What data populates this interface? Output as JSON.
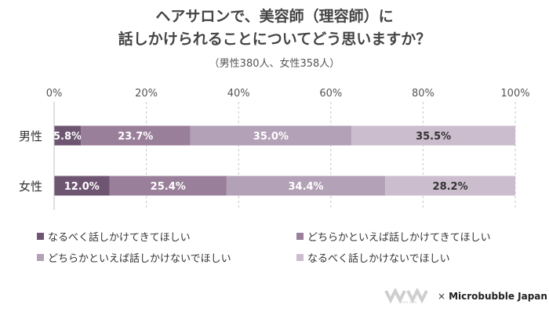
{
  "title_line1": "ヘアサロンで、美容師（理容師）に",
  "title_line2": "話しかけられることについてどう思いますか？",
  "subtitle": "（男性380人、女性358人）",
  "chart_data": {
    "type": "bar",
    "orientation": "horizontal",
    "stacked": true,
    "percent": true,
    "categories": [
      "男性",
      "女性"
    ],
    "series": [
      {
        "name": "なるべく話しかけてきてほしい",
        "values": [
          5.8,
          12.0
        ],
        "color": "#6e5572"
      },
      {
        "name": "どちらかといえば話しかけてきてほしい",
        "values": [
          23.7,
          25.4
        ],
        "color": "#9a7f9b"
      },
      {
        "name": "どちらかといえば話しかけないでほしい",
        "values": [
          35.0,
          34.4
        ],
        "color": "#b3a1b7"
      },
      {
        "name": "なるべく話しかけないでほしい",
        "values": [
          35.5,
          28.2
        ],
        "color": "#cbbdcd"
      }
    ],
    "data_labels": [
      [
        "5.8%",
        "23.7%",
        "35.0%",
        "35.5%"
      ],
      [
        "12.0%",
        "25.4%",
        "34.4%",
        "28.2%"
      ]
    ],
    "x_ticks": [
      "0%",
      "20%",
      "40%",
      "60%",
      "80%",
      "100%"
    ],
    "xlim": [
      0,
      100
    ],
    "legend_position": "bottom"
  },
  "footer": {
    "logo_caption": "××× ×××",
    "cross": "×",
    "brand": "Microbubble Japan"
  }
}
